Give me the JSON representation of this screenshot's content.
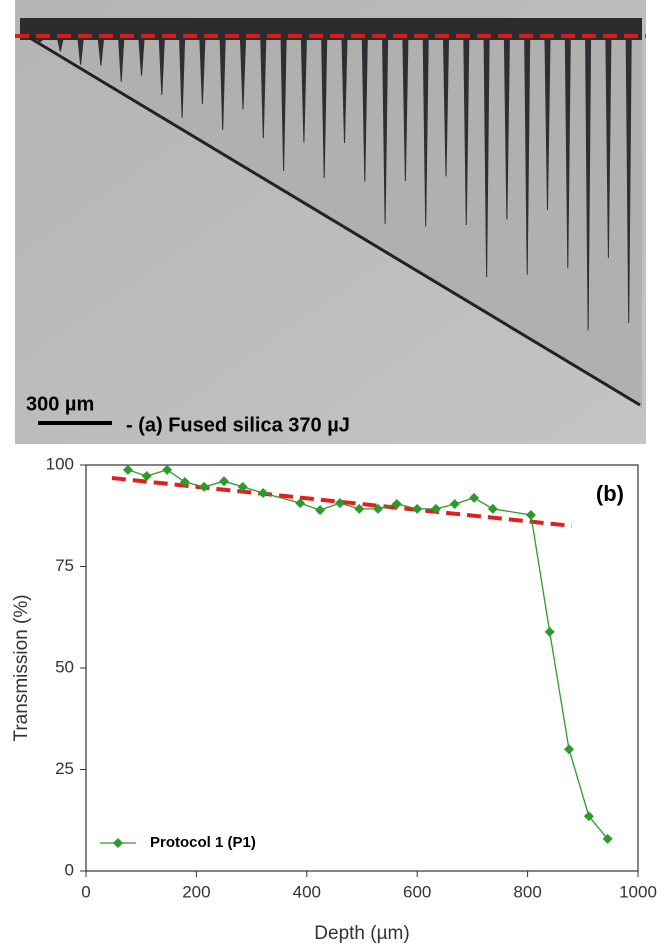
{
  "micrograph": {
    "scale_label": "300 µm",
    "caption": "- (a) Fused silica 370 µJ"
  },
  "chart_data": {
    "type": "line",
    "panel_label": "(b)",
    "x_label": "Depth (µm)",
    "y_label": "Transmission (%)",
    "x": [
      76,
      110,
      147,
      179,
      214,
      250,
      284,
      321,
      388,
      424,
      460,
      495,
      529,
      563,
      600,
      634,
      668,
      703,
      737,
      806,
      840,
      875,
      911,
      945
    ],
    "series": [
      {
        "name": "Protocol 1 (P1)",
        "color": "#2e9a2e",
        "values": [
          98.8,
          97.3,
          98.8,
          95.8,
          94.6,
          96,
          94.6,
          93.1,
          90.6,
          88.9,
          90.6,
          89.2,
          89.2,
          90.4,
          89.2,
          89.2,
          90.4,
          91.9,
          89.2,
          87.7,
          58.9,
          30,
          13.5,
          7.9
        ]
      }
    ],
    "trend_line": {
      "x": [
        47,
        880
      ],
      "values": [
        96.8,
        85
      ],
      "color": "#e02020"
    },
    "xlim": [
      0,
      1000
    ],
    "xticks": [
      0,
      200,
      400,
      600,
      800,
      1000
    ],
    "ylim": [
      0,
      100
    ],
    "yticks": [
      0,
      25,
      50,
      75,
      100
    ],
    "legend": "lower left"
  }
}
